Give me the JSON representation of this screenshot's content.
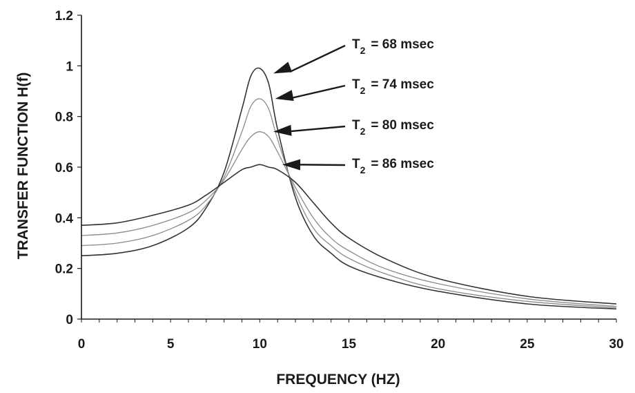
{
  "chart_data": {
    "type": "line",
    "title": "",
    "xlabel": "FREQUENCY (HZ)",
    "ylabel": "TRANSFER FUNCTION H(f)",
    "xlim": [
      0,
      30
    ],
    "ylim": [
      0,
      1.2
    ],
    "x_ticks": [
      "0",
      "5",
      "10",
      "15",
      "20",
      "25",
      "30"
    ],
    "y_ticks": [
      "0",
      "0.2",
      "0.4",
      "0.6",
      "0.8",
      "1",
      "1.2"
    ],
    "grid": false,
    "x": [
      0,
      2,
      4,
      6,
      7,
      8,
      9,
      9.5,
      10,
      10.5,
      11,
      12,
      13,
      14,
      15,
      17,
      20,
      25,
      30
    ],
    "series": [
      {
        "name": "T₂ = 68 msec",
        "color": "#333333",
        "values": [
          0.25,
          0.26,
          0.29,
          0.36,
          0.44,
          0.58,
          0.83,
          0.96,
          0.99,
          0.93,
          0.75,
          0.48,
          0.33,
          0.26,
          0.21,
          0.16,
          0.11,
          0.06,
          0.04
        ]
      },
      {
        "name": "T₂ = 74 msec",
        "color": "#8a8a8a",
        "values": [
          0.29,
          0.3,
          0.33,
          0.39,
          0.45,
          0.56,
          0.74,
          0.84,
          0.87,
          0.83,
          0.71,
          0.5,
          0.36,
          0.29,
          0.24,
          0.18,
          0.12,
          0.07,
          0.045
        ]
      },
      {
        "name": "T₂ = 80 msec",
        "color": "#8a8a8a",
        "values": [
          0.33,
          0.34,
          0.37,
          0.42,
          0.47,
          0.55,
          0.67,
          0.72,
          0.74,
          0.72,
          0.66,
          0.52,
          0.4,
          0.32,
          0.27,
          0.2,
          0.14,
          0.08,
          0.05
        ]
      },
      {
        "name": "T₂ = 86 msec",
        "color": "#333333",
        "values": [
          0.37,
          0.38,
          0.41,
          0.45,
          0.49,
          0.54,
          0.59,
          0.6,
          0.61,
          0.6,
          0.59,
          0.54,
          0.46,
          0.38,
          0.32,
          0.24,
          0.16,
          0.09,
          0.06
        ]
      }
    ],
    "annotations": [
      {
        "label": "T",
        "sub": "2",
        "text": "=  68 msec",
        "points_to": {
          "x": 10.3,
          "y": 0.97
        }
      },
      {
        "label": "T",
        "sub": "2",
        "text": "=  74 msec",
        "points_to": {
          "x": 10.4,
          "y": 0.87
        }
      },
      {
        "label": "T",
        "sub": "2",
        "text": "=  80 msec",
        "points_to": {
          "x": 10.3,
          "y": 0.74
        }
      },
      {
        "label": "T",
        "sub": "2",
        "text": "=  86 msec",
        "points_to": {
          "x": 10.8,
          "y": 0.61
        }
      }
    ]
  }
}
